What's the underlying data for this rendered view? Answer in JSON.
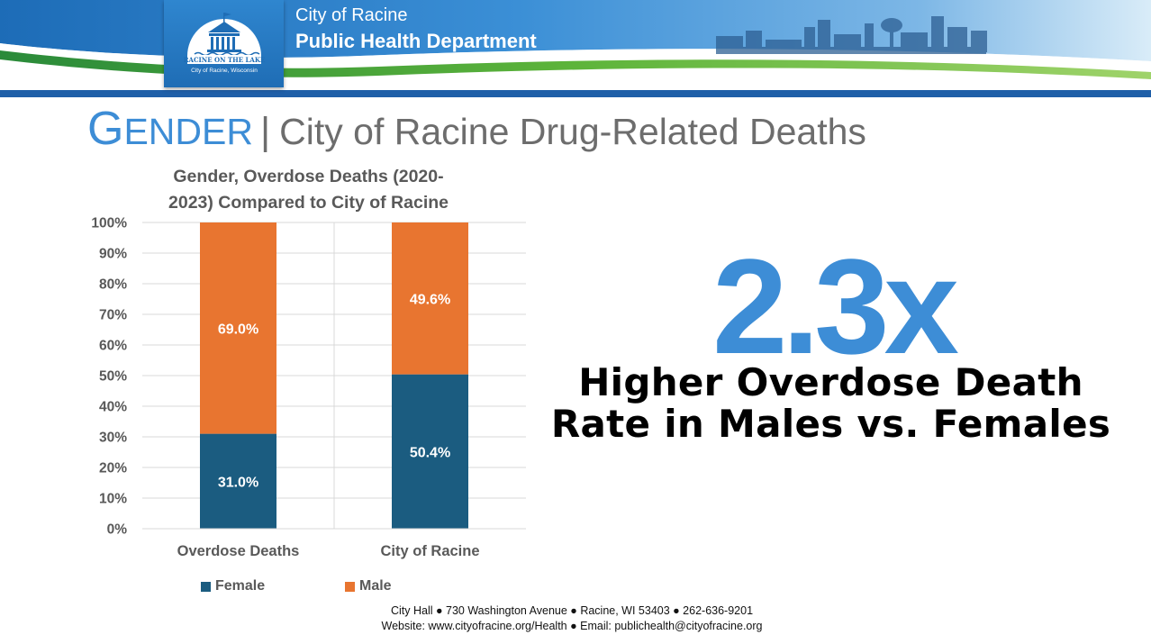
{
  "header": {
    "city": "City of Racine",
    "department": "Public Health Department",
    "logo_text_top": "RACINE ON THE LAKE",
    "logo_text_bottom": "City of Racine, Wisconsin"
  },
  "title": {
    "first_letter": "G",
    "rest_of_word": "ENDER",
    "separator": "|",
    "subtitle": "City of Racine Drug-Related Deaths"
  },
  "chart_data": {
    "type": "bar",
    "stacked": true,
    "title": "Gender, Overdose Deaths (2020-2023) Compared to City of Racine",
    "title_lines": [
      "Gender, Overdose Deaths (2020-",
      "2023) Compared to City of Racine"
    ],
    "categories": [
      "Overdose Deaths",
      "City of Racine"
    ],
    "series": [
      {
        "name": "Female",
        "values": [
          31.0,
          50.4
        ],
        "labels": [
          "31.0%",
          "50.4%"
        ],
        "color": "#1b5c80"
      },
      {
        "name": "Male",
        "values": [
          69.0,
          49.6
        ],
        "labels": [
          "69.0%",
          "49.6%"
        ],
        "color": "#e87530"
      }
    ],
    "ylim": [
      0,
      100
    ],
    "yticks": [
      "0%",
      "10%",
      "20%",
      "30%",
      "40%",
      "50%",
      "60%",
      "70%",
      "80%",
      "90%",
      "100%"
    ],
    "grid": true,
    "legend": "bottom"
  },
  "highlight": {
    "multiplier": "2.3x",
    "line1": "Higher Overdose Death",
    "line2": "Rate in Males vs. Females"
  },
  "footer": {
    "line1": "City Hall ● 730 Washington Avenue ● Racine, WI 53403 ● 262-636-9201",
    "line2": "Website: www.cityofracine.org/Health ● Email: publichealth@cityofracine.org"
  },
  "colors": {
    "accent_blue": "#3d8dd6",
    "header_blue": "#2a7cc7",
    "female": "#1b5c80",
    "male": "#e87530"
  }
}
